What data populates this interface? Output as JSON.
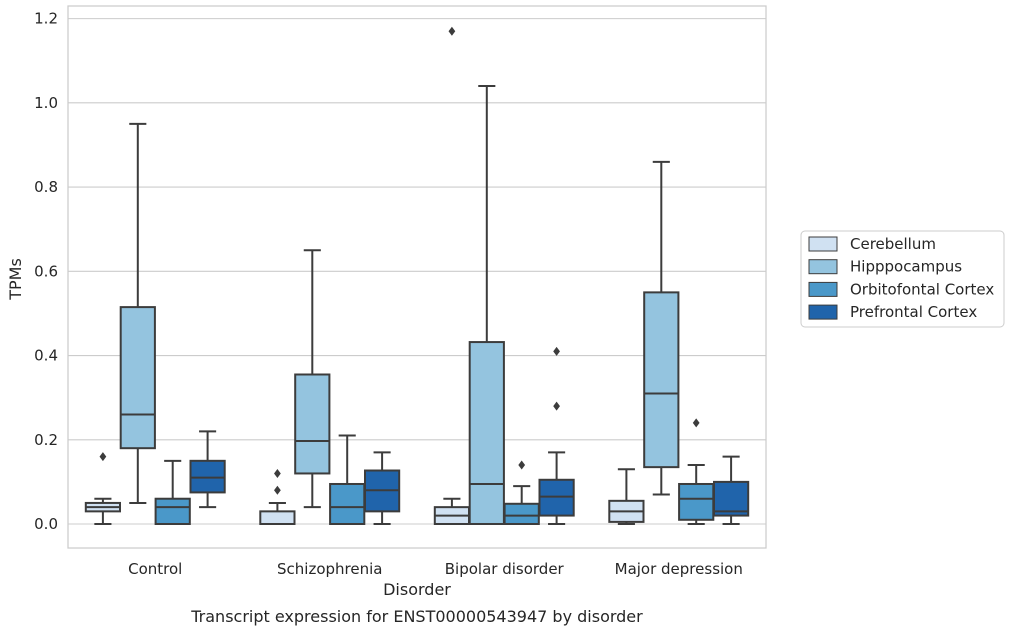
{
  "chart_data": {
    "type": "box",
    "title": "",
    "caption": "Transcript expression for ENST00000543947 by disorder",
    "xlabel": "Disorder",
    "ylabel": "TPMs",
    "ylim": [
      -0.057,
      1.23
    ],
    "yticks": [
      "0.0",
      "0.2",
      "0.4",
      "0.6",
      "0.8",
      "1.0",
      "1.2"
    ],
    "grid": true,
    "legend_position": "right",
    "categories": [
      "Control",
      "Schizophrenia",
      "Bipolar disorder",
      "Major depression"
    ],
    "series": [
      {
        "name": "Cerebellum",
        "color": "#d0e1f2",
        "boxes": [
          {
            "q1": 0.03,
            "median": 0.04,
            "q3": 0.05,
            "whisker_low": 0.0,
            "whisker_high": 0.06,
            "outliers": [
              0.16
            ]
          },
          {
            "q1": 0.0,
            "median": 0.0,
            "q3": 0.03,
            "whisker_low": 0.0,
            "whisker_high": 0.05,
            "outliers": [
              0.08,
              0.12
            ]
          },
          {
            "q1": 0.0,
            "median": 0.02,
            "q3": 0.04,
            "whisker_low": 0.0,
            "whisker_high": 0.06,
            "outliers": [
              1.17
            ]
          },
          {
            "q1": 0.005,
            "median": 0.03,
            "q3": 0.055,
            "whisker_low": 0.0,
            "whisker_high": 0.13,
            "outliers": []
          }
        ]
      },
      {
        "name": "Hipppocampus",
        "color": "#94c4df",
        "boxes": [
          {
            "q1": 0.18,
            "median": 0.26,
            "q3": 0.515,
            "whisker_low": 0.05,
            "whisker_high": 0.95,
            "outliers": []
          },
          {
            "q1": 0.12,
            "median": 0.197,
            "q3": 0.355,
            "whisker_low": 0.04,
            "whisker_high": 0.65,
            "outliers": []
          },
          {
            "q1": 0.0,
            "median": 0.095,
            "q3": 0.432,
            "whisker_low": 0.0,
            "whisker_high": 1.04,
            "outliers": []
          },
          {
            "q1": 0.135,
            "median": 0.31,
            "q3": 0.55,
            "whisker_low": 0.07,
            "whisker_high": 0.86,
            "outliers": []
          }
        ]
      },
      {
        "name": "Orbitofontal Cortex",
        "color": "#4a98c9",
        "boxes": [
          {
            "q1": 0.0,
            "median": 0.04,
            "q3": 0.06,
            "whisker_low": 0.0,
            "whisker_high": 0.15,
            "outliers": []
          },
          {
            "q1": 0.0,
            "median": 0.04,
            "q3": 0.095,
            "whisker_low": 0.0,
            "whisker_high": 0.21,
            "outliers": []
          },
          {
            "q1": 0.0,
            "median": 0.02,
            "q3": 0.048,
            "whisker_low": 0.0,
            "whisker_high": 0.09,
            "outliers": [
              0.14
            ]
          },
          {
            "q1": 0.01,
            "median": 0.06,
            "q3": 0.095,
            "whisker_low": 0.0,
            "whisker_high": 0.14,
            "outliers": [
              0.24
            ]
          }
        ]
      },
      {
        "name": "Prefrontal Cortex",
        "color": "#2064ab",
        "boxes": [
          {
            "q1": 0.075,
            "median": 0.11,
            "q3": 0.15,
            "whisker_low": 0.04,
            "whisker_high": 0.22,
            "outliers": []
          },
          {
            "q1": 0.03,
            "median": 0.08,
            "q3": 0.127,
            "whisker_low": 0.0,
            "whisker_high": 0.17,
            "outliers": []
          },
          {
            "q1": 0.02,
            "median": 0.065,
            "q3": 0.105,
            "whisker_low": 0.0,
            "whisker_high": 0.17,
            "outliers": [
              0.28,
              0.41
            ]
          },
          {
            "q1": 0.02,
            "median": 0.03,
            "q3": 0.1,
            "whisker_low": 0.0,
            "whisker_high": 0.16,
            "outliers": []
          }
        ]
      }
    ]
  }
}
